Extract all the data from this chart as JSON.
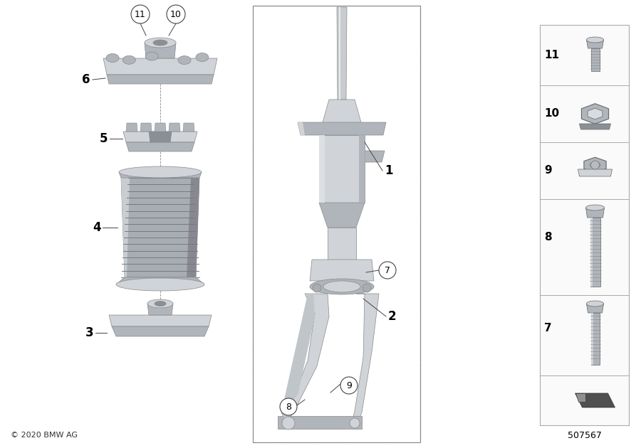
{
  "copyright": "© 2020 BMW AG",
  "part_number": "507567",
  "bg_color": "#ffffff",
  "gray_light": "#d0d4d8",
  "gray_mid": "#b0b5bb",
  "gray_dark": "#8a8f96",
  "gray_darker": "#6a6f76",
  "line_color": "#444444",
  "sidebar_bg": "#f8f8f8",
  "sidebar_border": "#aaaaaa"
}
